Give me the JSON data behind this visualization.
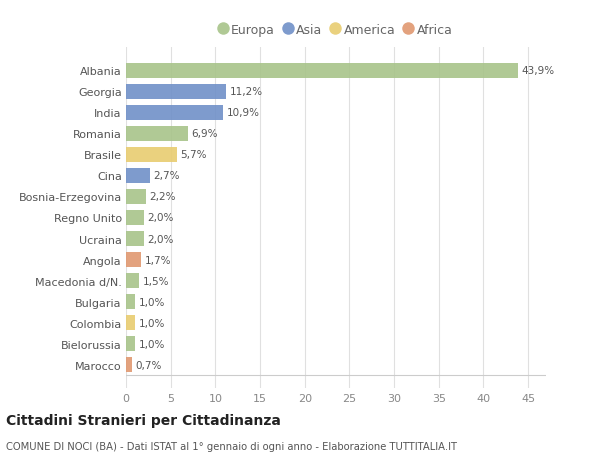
{
  "countries": [
    "Albania",
    "Georgia",
    "India",
    "Romania",
    "Brasile",
    "Cina",
    "Bosnia-Erzegovina",
    "Regno Unito",
    "Ucraina",
    "Angola",
    "Macedonia d/N.",
    "Bulgaria",
    "Colombia",
    "Bielorussia",
    "Marocco"
  ],
  "values": [
    43.9,
    11.2,
    10.9,
    6.9,
    5.7,
    2.7,
    2.2,
    2.0,
    2.0,
    1.7,
    1.5,
    1.0,
    1.0,
    1.0,
    0.7
  ],
  "labels": [
    "43,9%",
    "11,2%",
    "10,9%",
    "6,9%",
    "5,7%",
    "2,7%",
    "2,2%",
    "2,0%",
    "2,0%",
    "1,7%",
    "1,5%",
    "1,0%",
    "1,0%",
    "1,0%",
    "0,7%"
  ],
  "continents": [
    "Europa",
    "Asia",
    "Asia",
    "Europa",
    "America",
    "Asia",
    "Europa",
    "Europa",
    "Europa",
    "Africa",
    "Europa",
    "Europa",
    "America",
    "Europa",
    "Africa"
  ],
  "colors": {
    "Europa": "#a8c48a",
    "Asia": "#7090c8",
    "America": "#e8cc70",
    "Africa": "#e09870"
  },
  "xlim": [
    0,
    47
  ],
  "xticks": [
    0,
    5,
    10,
    15,
    20,
    25,
    30,
    35,
    40,
    45
  ],
  "title": "Cittadini Stranieri per Cittadinanza",
  "subtitle": "COMUNE DI NOCI (BA) - Dati ISTAT al 1° gennaio di ogni anno - Elaborazione TUTTITALIA.IT",
  "background_color": "#ffffff",
  "grid_color": "#e0e0e0"
}
